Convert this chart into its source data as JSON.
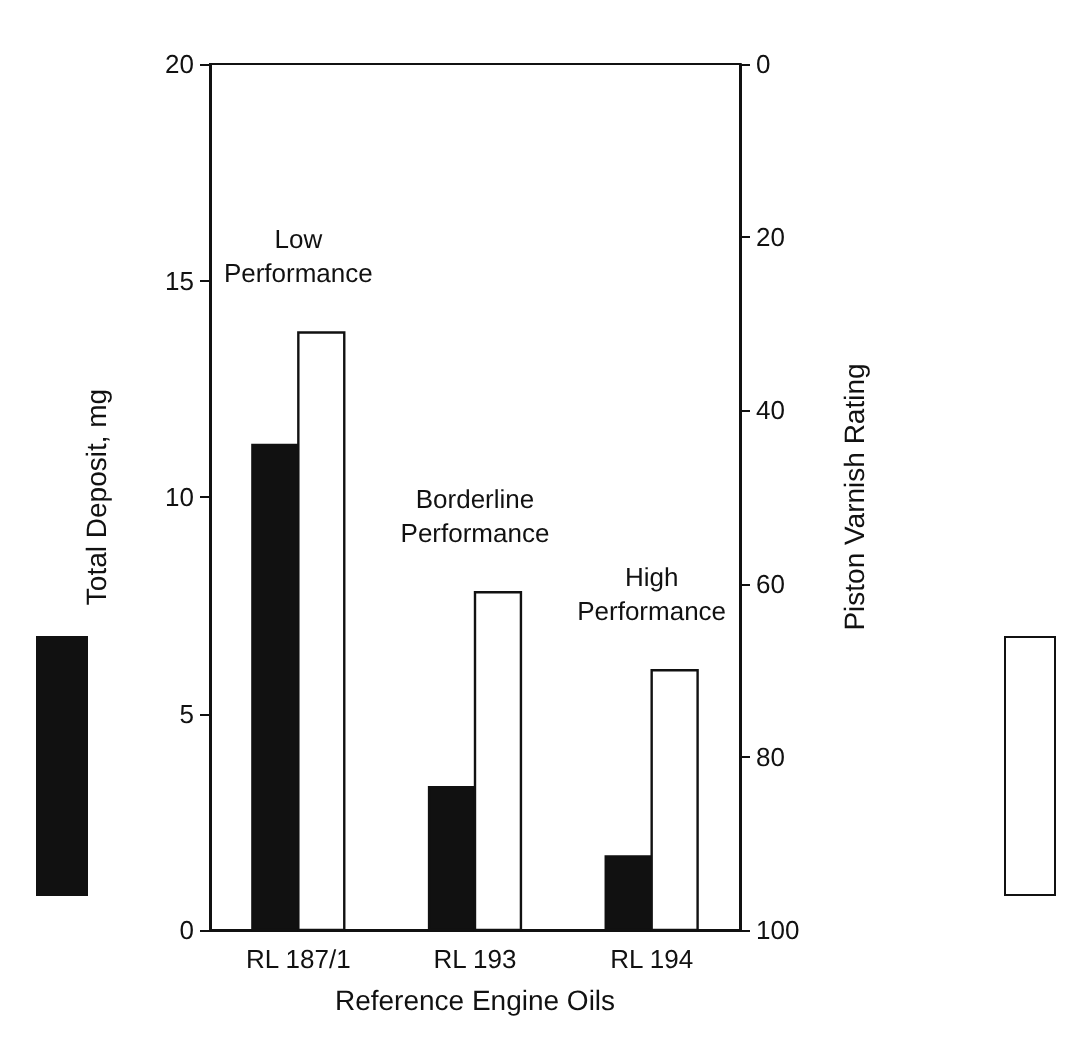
{
  "chart_data": {
    "type": "bar",
    "xlabel": "Reference Engine Oils",
    "ylabel": "Total Deposit, mg",
    "y2label": "Piston Varnish Rating",
    "categories": [
      "RL 187/1",
      "RL 193",
      "RL 194"
    ],
    "series": [
      {
        "color": "#111111",
        "values": [
          11.2,
          3.3,
          1.7
        ]
      },
      {
        "color": "#ffffff",
        "axis": "y2",
        "base": [
          100,
          100,
          100
        ],
        "values": [
          -69,
          -39,
          -30
        ]
      }
    ],
    "ylim": [
      0,
      20
    ],
    "yticks": [
      0,
      5,
      10,
      15,
      20
    ],
    "y2lim": [
      100,
      0
    ],
    "y2ticks": [
      0,
      20,
      40,
      60,
      80,
      100
    ],
    "annotations": [
      "Low Performance",
      "Borderline Performance",
      "High Performance"
    ],
    "grid": false
  }
}
